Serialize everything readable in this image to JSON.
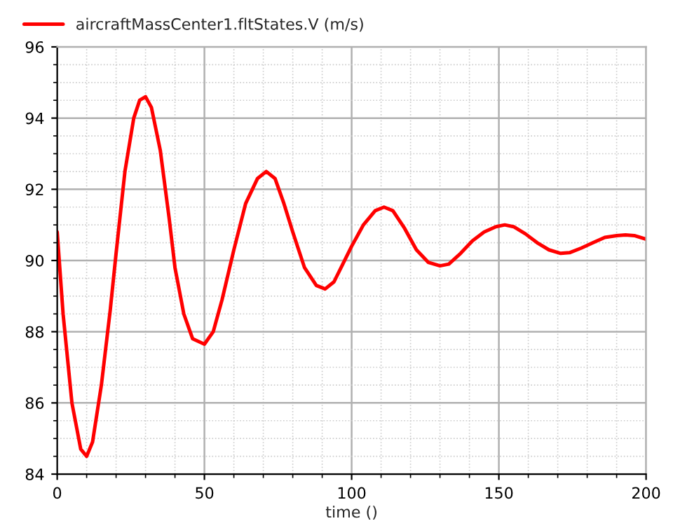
{
  "chart_data": {
    "type": "line",
    "xlabel": "time ()",
    "legend": "top left",
    "grid": true,
    "line_style": "solid",
    "marker": "none",
    "xlim": [
      0,
      200
    ],
    "ylim": [
      84,
      96
    ],
    "xticks": [
      0,
      {
        "value": 10,
        "label": null
      },
      {
        "value": 20,
        "label": null
      },
      {
        "value": 30,
        "label": null
      },
      {
        "value": 40,
        "label": null
      },
      50,
      {
        "value": 60,
        "label": null
      },
      {
        "value": 70,
        "label": null
      },
      {
        "value": 80,
        "label": null
      },
      {
        "value": 90,
        "label": null
      },
      100,
      {
        "value": 110,
        "label": null
      },
      {
        "value": 120,
        "label": null
      },
      {
        "value": 130,
        "label": null
      },
      {
        "value": 140,
        "label": null
      },
      150,
      {
        "value": 160,
        "label": null
      },
      {
        "value": 170,
        "label": null
      },
      {
        "value": 180,
        "label": null
      },
      {
        "value": 190,
        "label": null
      },
      200
    ],
    "yticks": [
      84,
      {
        "value": 84.5,
        "label": null
      },
      {
        "value": 85,
        "label": null
      },
      {
        "value": 85.5,
        "label": null
      },
      86,
      {
        "value": 86.5,
        "label": null
      },
      {
        "value": 87,
        "label": null
      },
      {
        "value": 87.5,
        "label": null
      },
      88,
      {
        "value": 88.5,
        "label": null
      },
      {
        "value": 89,
        "label": null
      },
      {
        "value": 89.5,
        "label": null
      },
      90,
      {
        "value": 90.5,
        "label": null
      },
      {
        "value": 91,
        "label": null
      },
      {
        "value": 91.5,
        "label": null
      },
      92,
      {
        "value": 92.5,
        "label": null
      },
      {
        "value": 93,
        "label": null
      },
      {
        "value": 93.5,
        "label": null
      },
      94,
      {
        "value": 94.5,
        "label": null
      },
      {
        "value": 95,
        "label": null
      },
      {
        "value": 95.5,
        "label": null
      },
      96
    ],
    "x": [
      0,
      2,
      5,
      8,
      10,
      12,
      15,
      18,
      20,
      23,
      26,
      28,
      30,
      32,
      35,
      38,
      40,
      43,
      46,
      50,
      53,
      56,
      60,
      64,
      68,
      71,
      74,
      77,
      80,
      84,
      88,
      91,
      94,
      97,
      100,
      104,
      108,
      111,
      114,
      118,
      122,
      126,
      130,
      133,
      137,
      141,
      145,
      149,
      152,
      155,
      159,
      163,
      167,
      171,
      174,
      178,
      182,
      186,
      190,
      193,
      196,
      200
    ],
    "series": [
      {
        "name": "aircraftMassCenter1.fltStates.V (m/s)",
        "color": "#ff0000",
        "values": [
          90.8,
          88.5,
          86.0,
          84.7,
          84.5,
          84.9,
          86.5,
          88.6,
          90.2,
          92.5,
          94.0,
          94.5,
          94.6,
          94.3,
          93.1,
          91.2,
          89.8,
          88.5,
          87.8,
          87.65,
          88.0,
          88.9,
          90.3,
          91.6,
          92.3,
          92.5,
          92.3,
          91.6,
          90.8,
          89.8,
          89.3,
          89.2,
          89.4,
          89.9,
          90.4,
          91.0,
          91.4,
          91.5,
          91.4,
          90.9,
          90.3,
          89.95,
          89.85,
          89.9,
          90.2,
          90.55,
          90.8,
          90.95,
          91.0,
          90.95,
          90.75,
          90.5,
          90.3,
          90.2,
          90.22,
          90.35,
          90.5,
          90.65,
          90.7,
          90.72,
          90.7,
          90.6
        ]
      }
    ]
  }
}
